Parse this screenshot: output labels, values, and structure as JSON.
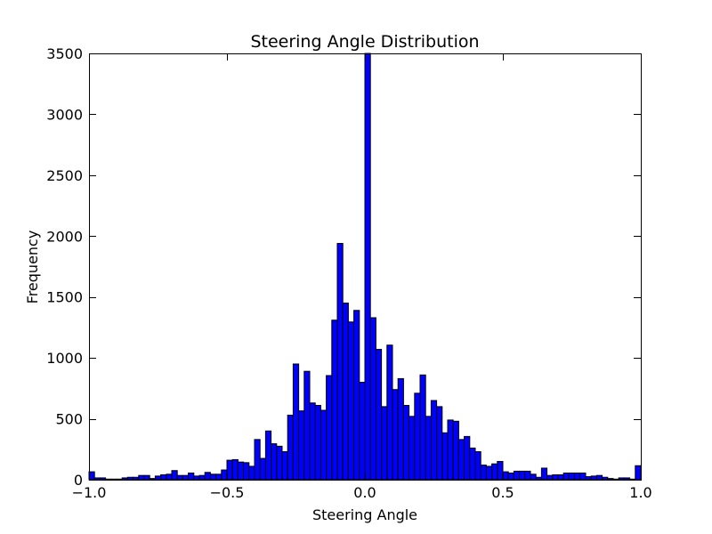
{
  "chart_data": {
    "type": "bar",
    "title": "Steering Angle Distribution",
    "xlabel": "Steering Angle",
    "ylabel": "Frequency",
    "xlim": [
      -1.0,
      1.0
    ],
    "ylim": [
      0,
      3500
    ],
    "bin_range": [
      -1.0,
      1.0
    ],
    "values": [
      65,
      15,
      15,
      5,
      5,
      5,
      15,
      20,
      20,
      35,
      35,
      10,
      30,
      40,
      45,
      75,
      35,
      35,
      55,
      30,
      35,
      60,
      45,
      45,
      80,
      160,
      165,
      145,
      140,
      110,
      330,
      175,
      400,
      295,
      275,
      230,
      530,
      950,
      565,
      890,
      630,
      610,
      570,
      855,
      1310,
      1940,
      1450,
      1295,
      1390,
      800,
      3500,
      1330,
      1070,
      600,
      1105,
      740,
      830,
      610,
      520,
      710,
      860,
      520,
      650,
      600,
      385,
      490,
      480,
      330,
      355,
      260,
      230,
      120,
      110,
      130,
      150,
      65,
      55,
      70,
      70,
      70,
      45,
      20,
      95,
      35,
      40,
      40,
      55,
      55,
      55,
      55,
      25,
      30,
      35,
      20,
      10,
      5,
      15,
      15,
      5,
      115
    ],
    "xticks": [
      "−1.0",
      "−0.5",
      "0.0",
      "0.5",
      "1.0"
    ],
    "xtick_values": [
      -1.0,
      -0.5,
      0.0,
      0.5,
      1.0
    ],
    "yticks": [
      "0",
      "500",
      "1000",
      "1500",
      "2000",
      "2500",
      "3000",
      "3500"
    ],
    "ytick_values": [
      0,
      500,
      1000,
      1500,
      2000,
      2500,
      3000,
      3500
    ],
    "grid": false,
    "bar_color": "#0000ff"
  }
}
